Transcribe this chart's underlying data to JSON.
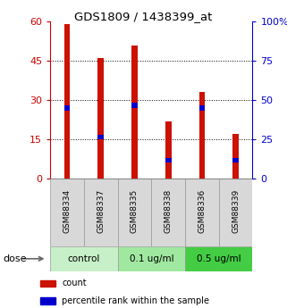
{
  "title": "GDS1809 / 1438399_at",
  "samples": [
    "GSM88334",
    "GSM88337",
    "GSM88335",
    "GSM88338",
    "GSM88336",
    "GSM88339"
  ],
  "red_values": [
    59,
    46,
    51,
    22,
    33,
    17
  ],
  "blue_values": [
    27,
    16,
    28,
    7,
    27,
    7
  ],
  "groups": [
    {
      "label": "control",
      "indices": [
        0,
        1
      ],
      "color": "#c8f0c8"
    },
    {
      "label": "0.1 ug/ml",
      "indices": [
        2,
        3
      ],
      "color": "#a0e8a0"
    },
    {
      "label": "0.5 ug/ml",
      "indices": [
        4,
        5
      ],
      "color": "#44cc44"
    }
  ],
  "left_ylim": [
    0,
    60
  ],
  "right_ylim": [
    0,
    100
  ],
  "left_yticks": [
    0,
    15,
    30,
    45,
    60
  ],
  "right_yticks": [
    0,
    25,
    50,
    75,
    100
  ],
  "right_yticklabels": [
    "0",
    "25",
    "50",
    "75",
    "100%"
  ],
  "left_color": "#cc0000",
  "right_color": "#0000cc",
  "bar_color": "#cc1100",
  "blue_marker_color": "#0000cc",
  "grid_color": "#000000",
  "dose_label": "dose",
  "legend_count": "count",
  "legend_percentile": "percentile rank within the sample",
  "bar_width": 0.18,
  "sample_box_color": "#d8d8d8"
}
